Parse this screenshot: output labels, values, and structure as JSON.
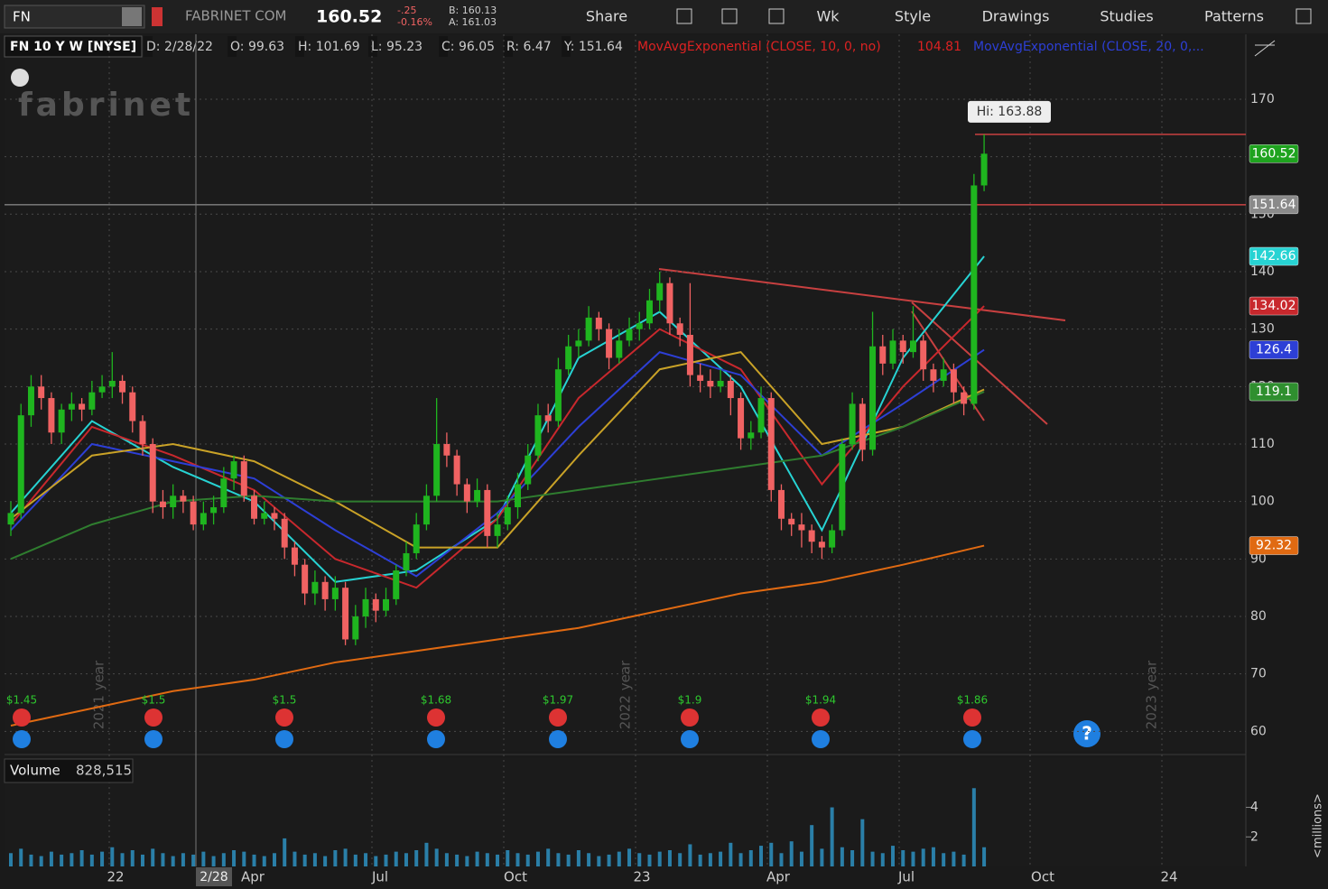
{
  "toolbar": {
    "symbol": "FN",
    "company": "FABRINET COM",
    "last": "160.52",
    "change": "-.25",
    "change_pct": "-0.16%",
    "bid": "B: 160.13",
    "ask": "A: 161.03",
    "buttons": [
      "Share",
      "Wk",
      "Style",
      "Drawings",
      "Studies",
      "Patterns"
    ]
  },
  "header": {
    "title": "FN 10 Y W [NYSE]",
    "fields": [
      "D: 2/28/22",
      "O: 99.63",
      "H: 101.69",
      "L: 95.23",
      "C: 96.05",
      "R: 6.47",
      "Y: 151.64"
    ],
    "studies": [
      {
        "label": "MovAvgExponential (CLOSE, 10, 0, no)",
        "value": "104.81"
      },
      {
        "label": "MovAvgExponential (CLOSE, 20, 0,..."
      }
    ]
  },
  "watermark": "fabrinet",
  "chart_data": {
    "type": "candlestick",
    "ylim": [
      56.6,
      181.3
    ],
    "yticks": [
      60,
      70,
      80,
      90,
      100,
      110,
      120,
      130,
      140,
      150,
      160,
      170
    ],
    "candles": [
      [
        96,
        100,
        94,
        98
      ],
      [
        98,
        117,
        97,
        115
      ],
      [
        115,
        122,
        113,
        120
      ],
      [
        120,
        122,
        116,
        118
      ],
      [
        118,
        119,
        110,
        112
      ],
      [
        112,
        117,
        110,
        116
      ],
      [
        116,
        119,
        114,
        117
      ],
      [
        117,
        118,
        114,
        116
      ],
      [
        116,
        121,
        115,
        119
      ],
      [
        119,
        122,
        118,
        120
      ],
      [
        120,
        126,
        118,
        121
      ],
      [
        121,
        122,
        117,
        119
      ],
      [
        119,
        120,
        112,
        114
      ],
      [
        114,
        115,
        108,
        110
      ],
      [
        110,
        111,
        98,
        100
      ],
      [
        100,
        102,
        97,
        99
      ],
      [
        99,
        103,
        97,
        101
      ],
      [
        101,
        102,
        98,
        100
      ],
      [
        100,
        101,
        95,
        96
      ],
      [
        96,
        100,
        95,
        98
      ],
      [
        98,
        101,
        96,
        99
      ],
      [
        99,
        106,
        98,
        104
      ],
      [
        104,
        108,
        102,
        107
      ],
      [
        107,
        108,
        100,
        101
      ],
      [
        101,
        102,
        96,
        97
      ],
      [
        97,
        100,
        96,
        98
      ],
      [
        98,
        99,
        95,
        97
      ],
      [
        97,
        98,
        90,
        92
      ],
      [
        92,
        93,
        87,
        89
      ],
      [
        89,
        90,
        82,
        84
      ],
      [
        84,
        88,
        82,
        86
      ],
      [
        86,
        87,
        81,
        83
      ],
      [
        83,
        87,
        81,
        85
      ],
      [
        85,
        86,
        75,
        76
      ],
      [
        76,
        82,
        75,
        80
      ],
      [
        80,
        85,
        78,
        83
      ],
      [
        83,
        84,
        79,
        81
      ],
      [
        81,
        85,
        80,
        83
      ],
      [
        83,
        89,
        82,
        88
      ],
      [
        88,
        93,
        87,
        91
      ],
      [
        91,
        98,
        90,
        96
      ],
      [
        96,
        103,
        95,
        101
      ],
      [
        101,
        118,
        100,
        110
      ],
      [
        110,
        112,
        106,
        108
      ],
      [
        108,
        109,
        101,
        103
      ],
      [
        103,
        104,
        98,
        100
      ],
      [
        100,
        104,
        99,
        102
      ],
      [
        102,
        103,
        92,
        94
      ],
      [
        94,
        98,
        92,
        96
      ],
      [
        96,
        101,
        95,
        99
      ],
      [
        99,
        105,
        97,
        103
      ],
      [
        103,
        110,
        102,
        108
      ],
      [
        108,
        117,
        107,
        115
      ],
      [
        115,
        117,
        112,
        114
      ],
      [
        114,
        125,
        113,
        123
      ],
      [
        123,
        129,
        122,
        127
      ],
      [
        127,
        130,
        125,
        128
      ],
      [
        128,
        134,
        127,
        132
      ],
      [
        132,
        133,
        128,
        130
      ],
      [
        130,
        131,
        123,
        125
      ],
      [
        125,
        130,
        124,
        128
      ],
      [
        128,
        132,
        127,
        130
      ],
      [
        130,
        133,
        128,
        131
      ],
      [
        131,
        137,
        130,
        135
      ],
      [
        135,
        140,
        133,
        138
      ],
      [
        138,
        139,
        129,
        131
      ],
      [
        131,
        132,
        127,
        129
      ],
      [
        129,
        138,
        120,
        122
      ],
      [
        122,
        124,
        119,
        121
      ],
      [
        121,
        123,
        118,
        120
      ],
      [
        120,
        123,
        119,
        121
      ],
      [
        121,
        122,
        115,
        118
      ],
      [
        118,
        119,
        109,
        111
      ],
      [
        111,
        114,
        109,
        112
      ],
      [
        112,
        120,
        111,
        118
      ],
      [
        118,
        119,
        100,
        102
      ],
      [
        102,
        103,
        95,
        97
      ],
      [
        97,
        98,
        94,
        96
      ],
      [
        96,
        98,
        92,
        95
      ],
      [
        95,
        96,
        91,
        93
      ],
      [
        93,
        94,
        90,
        92
      ],
      [
        92,
        96,
        91,
        95
      ],
      [
        95,
        111,
        94,
        110
      ],
      [
        110,
        119,
        109,
        117
      ],
      [
        117,
        118,
        107,
        109
      ],
      [
        109,
        133,
        108,
        127
      ],
      [
        127,
        129,
        122,
        124
      ],
      [
        124,
        130,
        123,
        128
      ],
      [
        128,
        129,
        124,
        126
      ],
      [
        126,
        134,
        125,
        128
      ],
      [
        128,
        129,
        121,
        123
      ],
      [
        123,
        124,
        119,
        121
      ],
      [
        121,
        125,
        120,
        123
      ],
      [
        123,
        124,
        117,
        119
      ],
      [
        119,
        120,
        115,
        117
      ],
      [
        117,
        157,
        116,
        155
      ],
      [
        155,
        163.88,
        154,
        160.52
      ]
    ],
    "up_color": "#1fb51f",
    "down_color": "#f06262",
    "ma_x": [
      0,
      8,
      16,
      24,
      32,
      40,
      48,
      56,
      64,
      72,
      80,
      88,
      96
    ],
    "series": [
      {
        "color": "#27d3d3",
        "values": [
          98,
          114,
          106,
          100,
          86,
          88,
          97,
          125,
          133,
          120,
          95,
          125,
          142.66
        ]
      },
      {
        "color": "#c8282d",
        "values": [
          96,
          113,
          108,
          102,
          90,
          85,
          97,
          118,
          130,
          123,
          103,
          120,
          134.02
        ]
      },
      {
        "color": "#2d3fd6",
        "values": [
          95,
          110,
          107,
          104,
          95,
          87,
          98,
          113,
          126,
          122,
          108,
          117,
          126.4
        ]
      },
      {
        "color": "#c9a227",
        "values": [
          97,
          108,
          110,
          107,
          100,
          92,
          92,
          108,
          123,
          126,
          110,
          113,
          119.5
        ]
      },
      {
        "color": "#2f7d2f",
        "values": [
          90,
          96,
          100,
          101,
          100,
          100,
          100,
          102,
          104,
          106,
          108,
          113,
          119.1
        ]
      },
      {
        "color": "#e06a12",
        "values": [
          61,
          64,
          67,
          69,
          72,
          74,
          76,
          78,
          81,
          84,
          86,
          89,
          92.32
        ]
      }
    ],
    "price_tags": [
      {
        "value": 160.52,
        "color": "#1fa31f"
      },
      {
        "value": 151.64,
        "color": "#8a8a8a"
      },
      {
        "value": 142.66,
        "color": "#27d3d3"
      },
      {
        "value": 134.02,
        "color": "#c8282d"
      },
      {
        "value": 126.4,
        "color": "#2d3fd6"
      },
      {
        "value": 119.1,
        "color": "#2f8f2f"
      },
      {
        "value": 92.32,
        "color": "#e06a12"
      }
    ],
    "hi": 163.88,
    "hi_label": "Hi: 163.88",
    "cursor": 151.64,
    "year_labels": [
      "2021 year",
      "2022 year",
      "2023 year"
    ],
    "dividends": [
      "$1.45",
      "$1.5",
      "$1.5",
      "$1.68",
      "$1.97",
      "$1.9",
      "$1.94",
      "$1.86"
    ],
    "x_labels": [
      "22",
      "Apr",
      "Jul",
      "Oct",
      "23",
      "Apr",
      "Jul",
      "Oct",
      "24"
    ],
    "cursor_date": "2/28"
  },
  "volume": {
    "label": "Volume",
    "value": "828,515",
    "unit": "<millions>",
    "color": "#2a7fa8",
    "ylim": [
      0,
      5.5
    ],
    "yticks": [
      2,
      4
    ],
    "values": [
      0.9,
      1.2,
      0.8,
      0.7,
      1.0,
      0.8,
      0.9,
      1.1,
      0.8,
      1.0,
      1.3,
      0.9,
      1.1,
      0.8,
      1.2,
      0.9,
      0.7,
      0.9,
      0.8,
      1.0,
      0.7,
      0.9,
      1.1,
      1.0,
      0.8,
      0.7,
      0.9,
      1.9,
      1.0,
      0.8,
      0.9,
      0.7,
      1.1,
      1.2,
      0.8,
      0.9,
      0.7,
      0.8,
      1.0,
      0.9,
      1.1,
      1.6,
      1.2,
      0.9,
      0.8,
      0.7,
      1.0,
      0.9,
      0.8,
      1.1,
      0.9,
      0.8,
      1.0,
      1.2,
      0.9,
      0.8,
      1.1,
      0.9,
      0.7,
      0.8,
      1.0,
      1.2,
      0.9,
      0.8,
      1.0,
      1.1,
      0.9,
      1.5,
      0.8,
      0.9,
      1.0,
      1.6,
      0.9,
      1.1,
      1.4,
      1.6,
      0.9,
      1.7,
      1.0,
      2.8,
      1.2,
      4.0,
      1.3,
      1.1,
      3.2,
      1.0,
      0.9,
      1.4,
      1.1,
      1.0,
      1.2,
      1.3,
      0.9,
      1.0,
      0.8,
      5.3,
      1.3
    ]
  }
}
